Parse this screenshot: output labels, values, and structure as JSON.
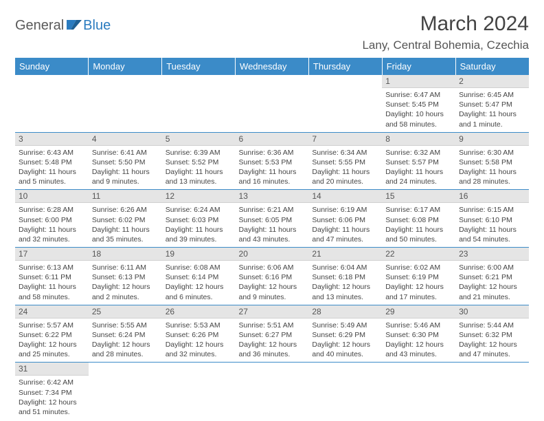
{
  "brand": {
    "part1": "General",
    "part2": "Blue"
  },
  "title": "March 2024",
  "location": "Lany, Central Bohemia, Czechia",
  "colors": {
    "header_bg": "#3b8bc8",
    "header_fg": "#ffffff",
    "daynum_bg": "#e5e5e5",
    "border": "#3b8bc8",
    "text": "#444444",
    "brand_gray": "#5a5a5a",
    "brand_blue": "#2a7bbf"
  },
  "weekdays": [
    "Sunday",
    "Monday",
    "Tuesday",
    "Wednesday",
    "Thursday",
    "Friday",
    "Saturday"
  ],
  "weeks": [
    [
      null,
      null,
      null,
      null,
      null,
      {
        "n": "1",
        "sr": "Sunrise: 6:47 AM",
        "ss": "Sunset: 5:45 PM",
        "dl": "Daylight: 10 hours and 58 minutes."
      },
      {
        "n": "2",
        "sr": "Sunrise: 6:45 AM",
        "ss": "Sunset: 5:47 PM",
        "dl": "Daylight: 11 hours and 1 minute."
      }
    ],
    [
      {
        "n": "3",
        "sr": "Sunrise: 6:43 AM",
        "ss": "Sunset: 5:48 PM",
        "dl": "Daylight: 11 hours and 5 minutes."
      },
      {
        "n": "4",
        "sr": "Sunrise: 6:41 AM",
        "ss": "Sunset: 5:50 PM",
        "dl": "Daylight: 11 hours and 9 minutes."
      },
      {
        "n": "5",
        "sr": "Sunrise: 6:39 AM",
        "ss": "Sunset: 5:52 PM",
        "dl": "Daylight: 11 hours and 13 minutes."
      },
      {
        "n": "6",
        "sr": "Sunrise: 6:36 AM",
        "ss": "Sunset: 5:53 PM",
        "dl": "Daylight: 11 hours and 16 minutes."
      },
      {
        "n": "7",
        "sr": "Sunrise: 6:34 AM",
        "ss": "Sunset: 5:55 PM",
        "dl": "Daylight: 11 hours and 20 minutes."
      },
      {
        "n": "8",
        "sr": "Sunrise: 6:32 AM",
        "ss": "Sunset: 5:57 PM",
        "dl": "Daylight: 11 hours and 24 minutes."
      },
      {
        "n": "9",
        "sr": "Sunrise: 6:30 AM",
        "ss": "Sunset: 5:58 PM",
        "dl": "Daylight: 11 hours and 28 minutes."
      }
    ],
    [
      {
        "n": "10",
        "sr": "Sunrise: 6:28 AM",
        "ss": "Sunset: 6:00 PM",
        "dl": "Daylight: 11 hours and 32 minutes."
      },
      {
        "n": "11",
        "sr": "Sunrise: 6:26 AM",
        "ss": "Sunset: 6:02 PM",
        "dl": "Daylight: 11 hours and 35 minutes."
      },
      {
        "n": "12",
        "sr": "Sunrise: 6:24 AM",
        "ss": "Sunset: 6:03 PM",
        "dl": "Daylight: 11 hours and 39 minutes."
      },
      {
        "n": "13",
        "sr": "Sunrise: 6:21 AM",
        "ss": "Sunset: 6:05 PM",
        "dl": "Daylight: 11 hours and 43 minutes."
      },
      {
        "n": "14",
        "sr": "Sunrise: 6:19 AM",
        "ss": "Sunset: 6:06 PM",
        "dl": "Daylight: 11 hours and 47 minutes."
      },
      {
        "n": "15",
        "sr": "Sunrise: 6:17 AM",
        "ss": "Sunset: 6:08 PM",
        "dl": "Daylight: 11 hours and 50 minutes."
      },
      {
        "n": "16",
        "sr": "Sunrise: 6:15 AM",
        "ss": "Sunset: 6:10 PM",
        "dl": "Daylight: 11 hours and 54 minutes."
      }
    ],
    [
      {
        "n": "17",
        "sr": "Sunrise: 6:13 AM",
        "ss": "Sunset: 6:11 PM",
        "dl": "Daylight: 11 hours and 58 minutes."
      },
      {
        "n": "18",
        "sr": "Sunrise: 6:11 AM",
        "ss": "Sunset: 6:13 PM",
        "dl": "Daylight: 12 hours and 2 minutes."
      },
      {
        "n": "19",
        "sr": "Sunrise: 6:08 AM",
        "ss": "Sunset: 6:14 PM",
        "dl": "Daylight: 12 hours and 6 minutes."
      },
      {
        "n": "20",
        "sr": "Sunrise: 6:06 AM",
        "ss": "Sunset: 6:16 PM",
        "dl": "Daylight: 12 hours and 9 minutes."
      },
      {
        "n": "21",
        "sr": "Sunrise: 6:04 AM",
        "ss": "Sunset: 6:18 PM",
        "dl": "Daylight: 12 hours and 13 minutes."
      },
      {
        "n": "22",
        "sr": "Sunrise: 6:02 AM",
        "ss": "Sunset: 6:19 PM",
        "dl": "Daylight: 12 hours and 17 minutes."
      },
      {
        "n": "23",
        "sr": "Sunrise: 6:00 AM",
        "ss": "Sunset: 6:21 PM",
        "dl": "Daylight: 12 hours and 21 minutes."
      }
    ],
    [
      {
        "n": "24",
        "sr": "Sunrise: 5:57 AM",
        "ss": "Sunset: 6:22 PM",
        "dl": "Daylight: 12 hours and 25 minutes."
      },
      {
        "n": "25",
        "sr": "Sunrise: 5:55 AM",
        "ss": "Sunset: 6:24 PM",
        "dl": "Daylight: 12 hours and 28 minutes."
      },
      {
        "n": "26",
        "sr": "Sunrise: 5:53 AM",
        "ss": "Sunset: 6:26 PM",
        "dl": "Daylight: 12 hours and 32 minutes."
      },
      {
        "n": "27",
        "sr": "Sunrise: 5:51 AM",
        "ss": "Sunset: 6:27 PM",
        "dl": "Daylight: 12 hours and 36 minutes."
      },
      {
        "n": "28",
        "sr": "Sunrise: 5:49 AM",
        "ss": "Sunset: 6:29 PM",
        "dl": "Daylight: 12 hours and 40 minutes."
      },
      {
        "n": "29",
        "sr": "Sunrise: 5:46 AM",
        "ss": "Sunset: 6:30 PM",
        "dl": "Daylight: 12 hours and 43 minutes."
      },
      {
        "n": "30",
        "sr": "Sunrise: 5:44 AM",
        "ss": "Sunset: 6:32 PM",
        "dl": "Daylight: 12 hours and 47 minutes."
      }
    ],
    [
      {
        "n": "31",
        "sr": "Sunrise: 6:42 AM",
        "ss": "Sunset: 7:34 PM",
        "dl": "Daylight: 12 hours and 51 minutes."
      },
      null,
      null,
      null,
      null,
      null,
      null
    ]
  ]
}
